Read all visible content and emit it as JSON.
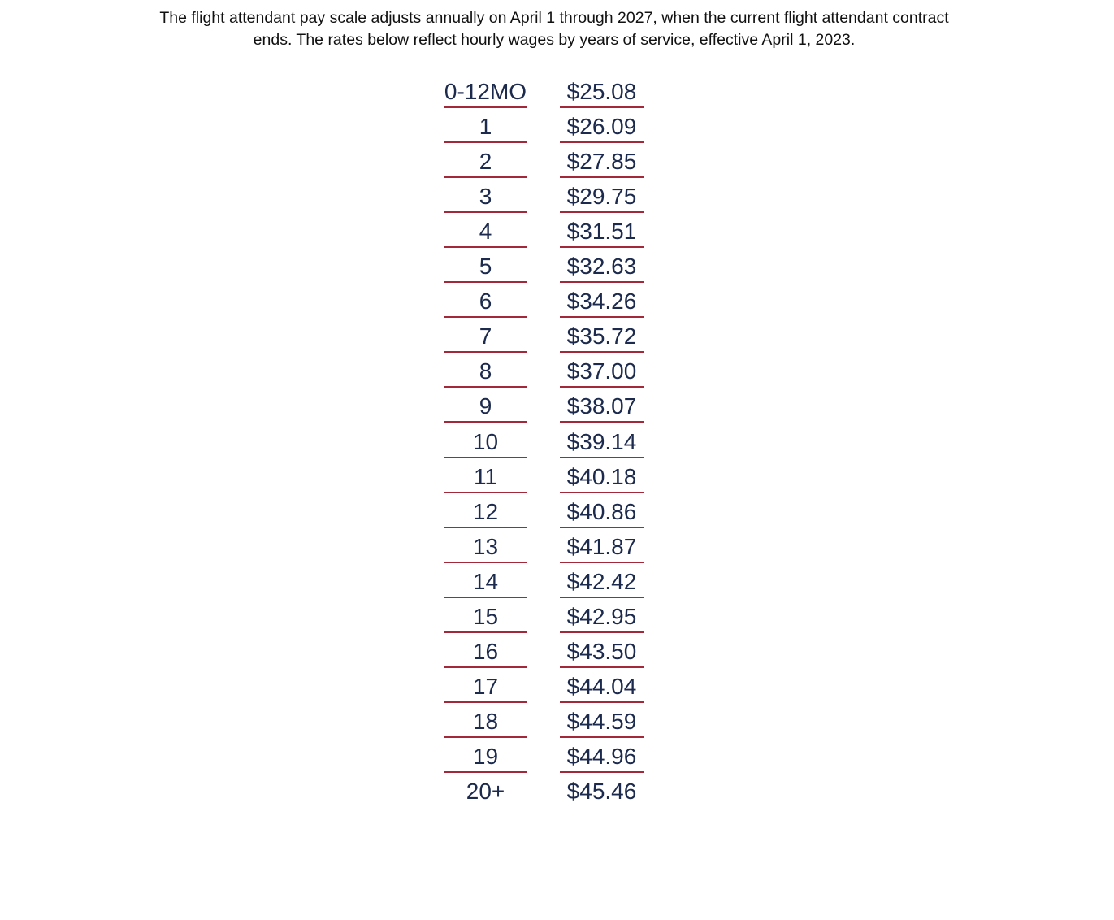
{
  "intro": "The flight attendant pay scale adjusts annually on April 1 through 2027, when the current flight attendant contract ends. The rates below reflect hourly wages by years of service, effective April 1, 2023.",
  "table": {
    "rows": [
      [
        "0-12MO",
        "$25.08"
      ],
      [
        "1",
        "$26.09"
      ],
      [
        "2",
        "$27.85"
      ],
      [
        "3",
        "$29.75"
      ],
      [
        "4",
        "$31.51"
      ],
      [
        "5",
        "$32.63"
      ],
      [
        "6",
        "$34.26"
      ],
      [
        "7",
        "$35.72"
      ],
      [
        "8",
        "$37.00"
      ],
      [
        "9",
        "$38.07"
      ],
      [
        "10",
        "$39.14"
      ],
      [
        "11",
        "$40.18"
      ],
      [
        "12",
        "$40.86"
      ],
      [
        "13",
        "$41.87"
      ],
      [
        "14",
        "$42.42"
      ],
      [
        "15",
        "$42.95"
      ],
      [
        "16",
        "$43.50"
      ],
      [
        "17",
        "$44.04"
      ],
      [
        "18",
        "$44.59"
      ],
      [
        "19",
        "$44.96"
      ],
      [
        "20+",
        "$45.46"
      ]
    ]
  }
}
